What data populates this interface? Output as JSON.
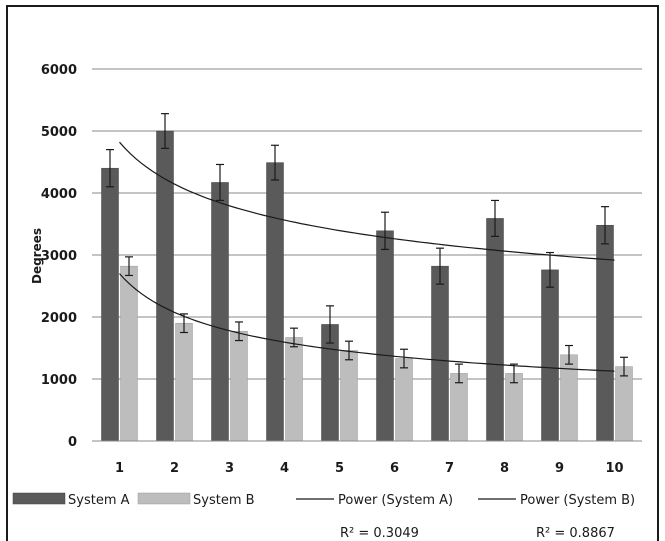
{
  "chart_data": {
    "type": "bar",
    "title": "",
    "xlabel": "",
    "ylabel": "Degrees",
    "ylim": [
      0,
      6000
    ],
    "yticks": [
      "0",
      "1000",
      "2000",
      "3000",
      "4000",
      "5000",
      "6000"
    ],
    "grid": true,
    "legend_position": "bottom",
    "categories": [
      "1",
      "2",
      "3",
      "4",
      "5",
      "6",
      "7",
      "8",
      "9",
      "10"
    ],
    "series": [
      {
        "name": "System A",
        "color": "#5a5a5a",
        "values": [
          4400,
          5000,
          4170,
          4490,
          1880,
          3390,
          2820,
          3590,
          2760,
          3480
        ],
        "error": [
          300,
          280,
          290,
          280,
          300,
          300,
          290,
          290,
          280,
          300
        ]
      },
      {
        "name": "System B",
        "color": "#bdbdbd",
        "values": [
          2820,
          1900,
          1770,
          1670,
          1460,
          1330,
          1090,
          1090,
          1390,
          1200
        ],
        "error": [
          150,
          150,
          150,
          150,
          150,
          150,
          150,
          150,
          150,
          150
        ]
      }
    ],
    "trendlines": [
      {
        "name": "Power (System A)",
        "type": "power",
        "a": 4820,
        "b": -0.218,
        "r2_label": "R² = 0.3049"
      },
      {
        "name": "Power (System B)",
        "type": "power",
        "a": 2700,
        "b": -0.38,
        "r2_label": "R² = 0.8867"
      }
    ]
  }
}
